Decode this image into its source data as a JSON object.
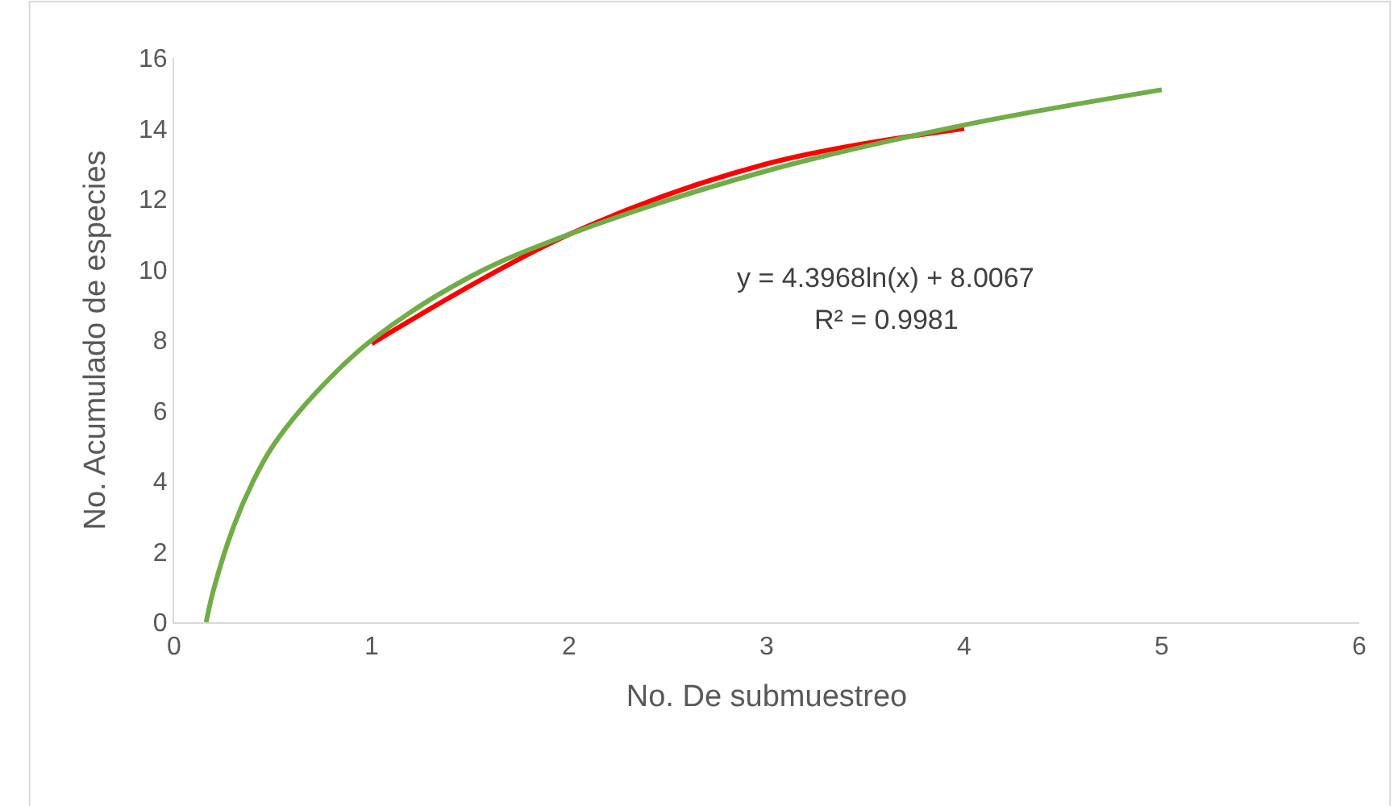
{
  "chart_data": {
    "type": "line",
    "xlabel": "No. De submuestreo",
    "ylabel": "No. Acumulado de especies",
    "xlim": [
      0,
      6
    ],
    "xticks": [
      0,
      1,
      2,
      3,
      4,
      5,
      6
    ],
    "ylim": [
      0,
      16
    ],
    "yticks": [
      0,
      2,
      4,
      6,
      8,
      10,
      12,
      14,
      16
    ],
    "series": [
      {
        "color": "#ff0000",
        "x": [
          1,
          2,
          3,
          4
        ],
        "values": [
          7.9,
          11,
          13,
          14
        ]
      },
      {
        "color": "#70ad47",
        "x": [
          0.162,
          0.2,
          0.3,
          0.4,
          0.5,
          0.7,
          1,
          1.5,
          2,
          3,
          4,
          5
        ],
        "values": [
          0,
          0.93,
          2.7,
          4.0,
          5.0,
          6.4,
          8.0,
          9.8,
          11.0,
          12.8,
          14.1,
          15.1
        ]
      }
    ],
    "annotations": [
      "y = 4.3968ln(x) + 8.0067",
      "R² = 0.9981"
    ],
    "legend": false,
    "marker": "none",
    "line_style": "solid"
  }
}
